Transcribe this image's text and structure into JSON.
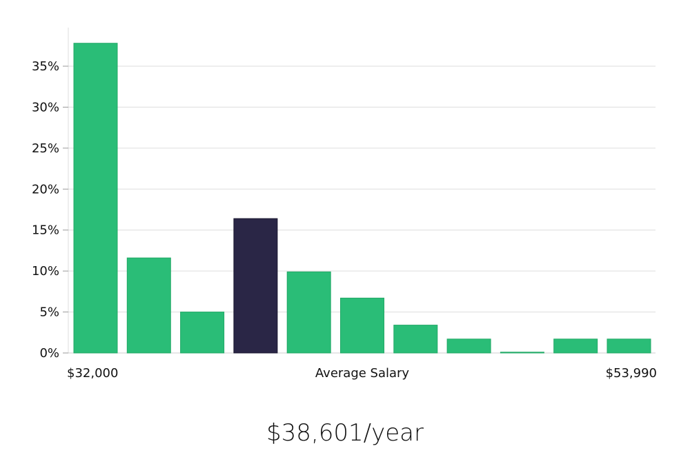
{
  "chart_data": {
    "type": "bar",
    "xlabel": "Average Salary",
    "x_range_labels": [
      "$32,000",
      "$53,990"
    ],
    "ylabel": "",
    "y_unit": "%",
    "ylim": [
      0,
      40
    ],
    "yticks": [
      0,
      5,
      10,
      15,
      20,
      25,
      30,
      35
    ],
    "ytick_labels": [
      "0%",
      "5%",
      "10%",
      "15%",
      "20%",
      "25%",
      "30%",
      "35%"
    ],
    "grid": true,
    "values": [
      37.8,
      11.6,
      5.0,
      16.4,
      9.9,
      6.7,
      3.4,
      1.7,
      0.1,
      1.7,
      1.7
    ],
    "highlight_index": 3,
    "bar_color": "#2abd77",
    "highlight_color": "#2a2646"
  },
  "headline": "$38,601/year"
}
